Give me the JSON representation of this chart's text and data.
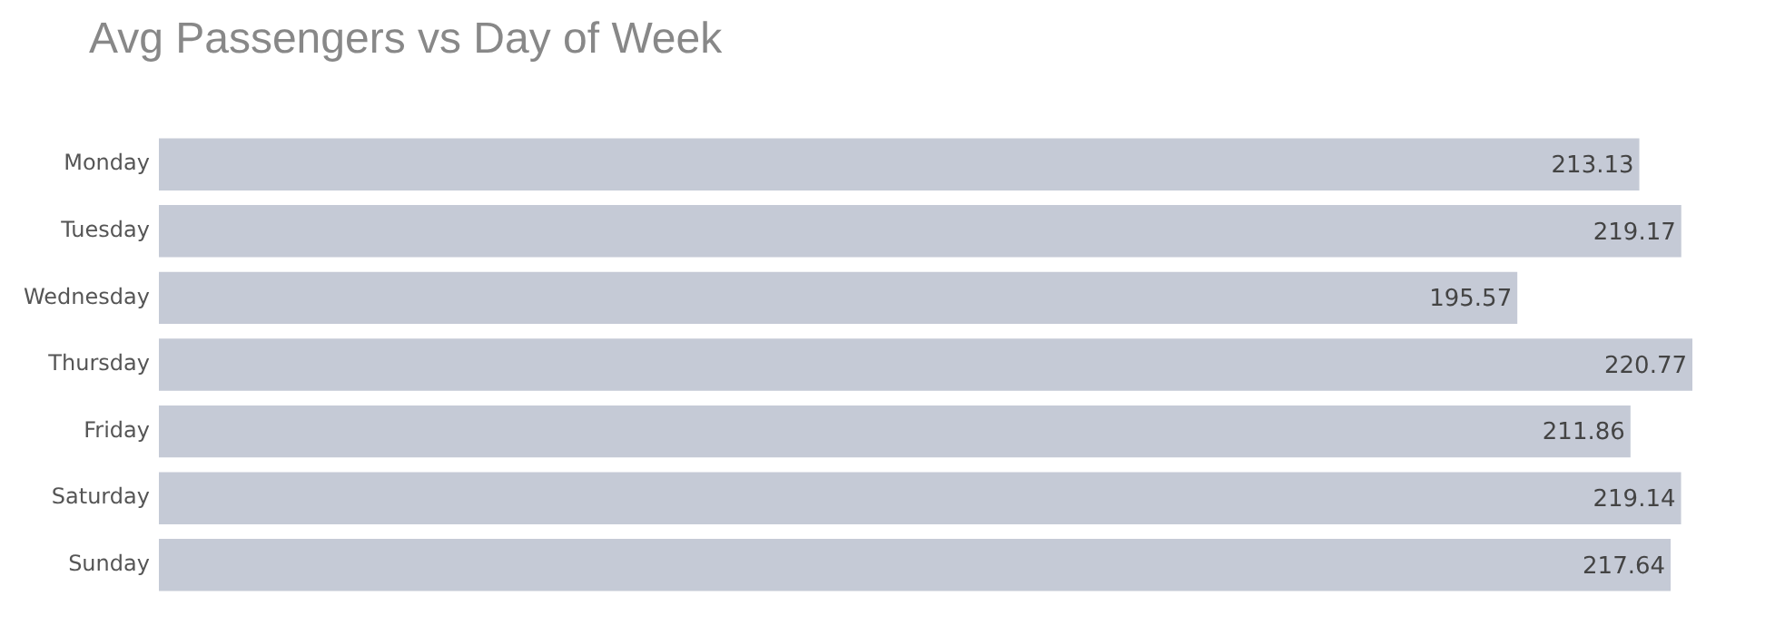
{
  "chart_data": {
    "type": "bar",
    "title": "Avg Passengers vs Day of Week",
    "orientation": "horizontal",
    "categories": [
      "Monday",
      "Tuesday",
      "Wednesday",
      "Thursday",
      "Friday",
      "Saturday",
      "Sunday"
    ],
    "values": [
      213.13,
      219.17,
      195.57,
      220.77,
      211.86,
      219.14,
      217.64
    ],
    "color": "#c5cad6",
    "data_labels": true,
    "legend": false,
    "tick_labels": "y"
  }
}
